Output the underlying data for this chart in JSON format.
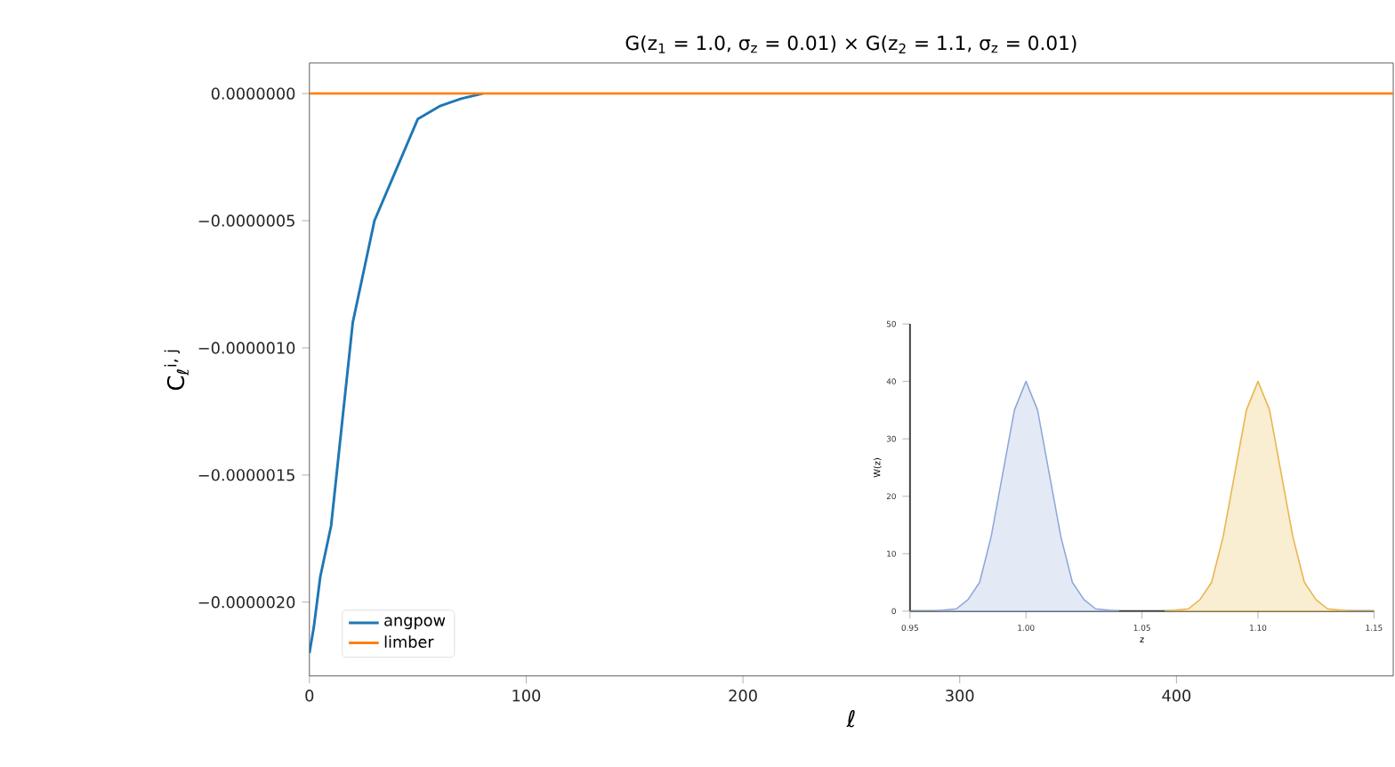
{
  "chart_data": [
    {
      "type": "line",
      "title": "G(z$_{1}$ = 1.0, σ$_{z}$ = 0.01) × G(z$_{2}$ = 1.1, σ$_{z}$ = 0.01)",
      "xlabel": "ℓ",
      "ylabel": "C$_{ℓ}$$^{i, j}$",
      "xlim": [
        0,
        500
      ],
      "ylim": [
        -2.29e-06,
        1.2e-07
      ],
      "xticks": [
        0,
        100,
        200,
        300,
        400
      ],
      "yticks": [
        {
          "value": 0,
          "label": "0.0000000"
        },
        {
          "value": -5e-07,
          "label": "−0.0000005"
        },
        {
          "value": -1e-06,
          "label": "−0.0000010"
        },
        {
          "value": -1.5e-06,
          "label": "−0.0000015"
        },
        {
          "value": -2e-06,
          "label": "−0.0000020"
        }
      ],
      "legend": "bottom left",
      "series": [
        {
          "name": "angpow",
          "color": "#1f77b4",
          "x": [
            0,
            2,
            5,
            10,
            15,
            20,
            25,
            30,
            40,
            50,
            60,
            70,
            80
          ],
          "values": [
            -2.2e-06,
            -2.1e-06,
            -1.9e-06,
            -1.7e-06,
            -1.3e-06,
            -9e-07,
            -7e-07,
            -5e-07,
            -3e-07,
            -1e-07,
            -5e-08,
            -2e-08,
            0
          ]
        },
        {
          "name": "limber",
          "color": "#ff7f0e",
          "x": [
            0,
            100,
            200,
            300,
            400,
            500
          ],
          "values": [
            0,
            0,
            0,
            0,
            0,
            0
          ]
        }
      ]
    },
    {
      "type": "area",
      "xlabel": "z",
      "ylabel": "W(z)",
      "xlim": [
        0.95,
        1.15
      ],
      "ylim": [
        0,
        50
      ],
      "xticks": [
        {
          "value": 0.95,
          "label": "0.95"
        },
        {
          "value": 1.0,
          "label": "1.00"
        },
        {
          "value": 1.05,
          "label": "1.05"
        },
        {
          "value": 1.1,
          "label": "1.10"
        },
        {
          "value": 1.15,
          "label": "1.15"
        }
      ],
      "yticks": [
        0,
        10,
        20,
        30,
        40,
        50
      ],
      "series": [
        {
          "color": "#8ea9d8",
          "x": [
            0.95,
            0.96,
            0.97,
            0.975,
            0.98,
            0.985,
            0.99,
            0.995,
            1.0,
            1.005,
            1.01,
            1.015,
            1.02,
            1.025,
            1.03,
            1.04
          ],
          "values": [
            0,
            0,
            0.4,
            2,
            5,
            13,
            24,
            35,
            40,
            35,
            24,
            13,
            5,
            2,
            0.4,
            0
          ]
        },
        {
          "color": "#e8b64c",
          "x": [
            1.06,
            1.07,
            1.075,
            1.08,
            1.085,
            1.09,
            1.095,
            1.1,
            1.105,
            1.11,
            1.115,
            1.12,
            1.125,
            1.13,
            1.14,
            1.15
          ],
          "values": [
            0,
            0.4,
            2,
            5,
            13,
            24,
            35,
            40,
            35,
            24,
            13,
            5,
            2,
            0.4,
            0,
            0
          ]
        }
      ]
    }
  ]
}
